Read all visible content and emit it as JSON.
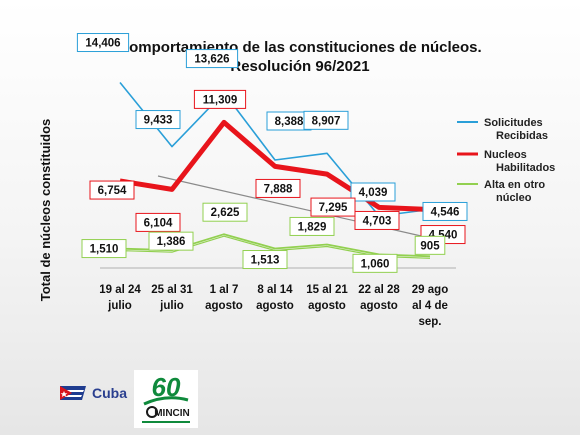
{
  "chart_data": {
    "type": "line",
    "title": "Comportamiento de las constituciones de núcleos.",
    "subtitle": "Resolución 96/2021",
    "ylabel": "Total de núcleos constituidos",
    "xlabel": "",
    "categories": [
      [
        "19 al 24",
        "julio"
      ],
      [
        "25 al 31",
        "julio"
      ],
      [
        "1 al 7",
        "agosto"
      ],
      [
        "8 al 14",
        "agosto"
      ],
      [
        "15 al 21",
        "agosto"
      ],
      [
        "22 al 28",
        "agosto"
      ],
      [
        "29 ago",
        "al 4 de",
        "sep."
      ]
    ],
    "ylim": [
      0,
      16000
    ],
    "grid": false,
    "legend_position": "right",
    "series": [
      {
        "name": "Solicitudes Recibidas",
        "legend_lines": [
          "Solicitudes",
          "Recibidas"
        ],
        "color": "#2a9fd8",
        "values": [
          14406,
          9433,
          13626,
          8388,
          8907,
          4039,
          4546
        ],
        "labels": [
          "14,406",
          "9,433",
          "13,626",
          "8,388",
          "8,907",
          "4,039",
          "4,546"
        ]
      },
      {
        "name": "Nucleos Habilitados",
        "legend_lines": [
          "Nucleos",
          "Habilitados"
        ],
        "color": "#e8141b",
        "values": [
          6754,
          6104,
          11309,
          7888,
          7295,
          4703,
          4540
        ],
        "labels": [
          "6,754",
          "6,104",
          "11,309",
          "7,888",
          "7,295",
          "4,703",
          "4,540"
        ]
      },
      {
        "name": "Alta en otro núcleo",
        "legend_lines": [
          "Alta en otro",
          "núcleo"
        ],
        "color": "#92d050",
        "values": [
          1510,
          1386,
          2625,
          1513,
          1829,
          1060,
          905
        ],
        "labels": [
          "1,510",
          "1,386",
          "2,625",
          "1,513",
          "1,829",
          "1,060",
          "905"
        ]
      }
    ]
  },
  "footer": {
    "cuba_label": "Cuba",
    "logo_number": "60",
    "logo_text": "MINCIN"
  }
}
